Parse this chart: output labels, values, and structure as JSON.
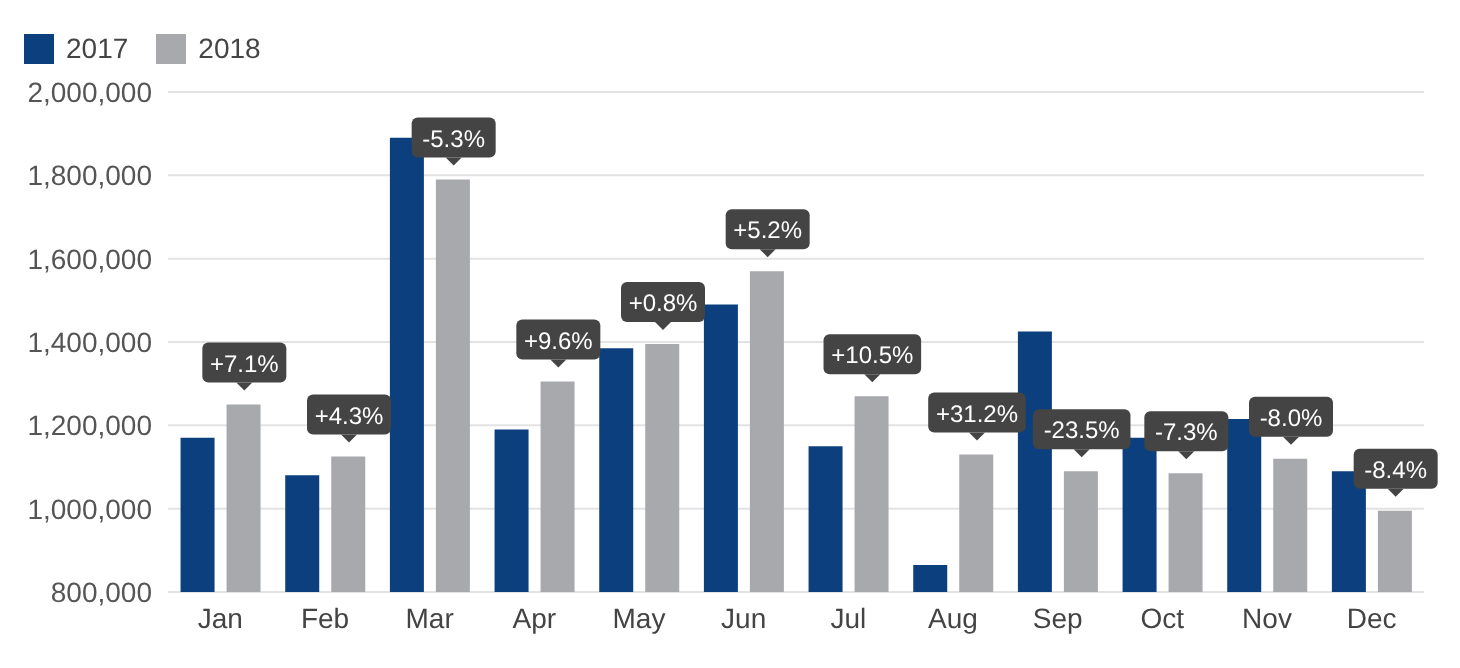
{
  "chart_data": {
    "type": "bar",
    "categories": [
      "Jan",
      "Feb",
      "Mar",
      "Apr",
      "May",
      "Jun",
      "Jul",
      "Aug",
      "Sep",
      "Oct",
      "Nov",
      "Dec"
    ],
    "series": [
      {
        "name": "2017",
        "color": "#0b3f7d",
        "values": [
          1170000,
          1080000,
          1890000,
          1190000,
          1385000,
          1490000,
          1150000,
          865000,
          1425000,
          1170000,
          1215000,
          1090000
        ]
      },
      {
        "name": "2018",
        "color": "#a7a9ac",
        "values": [
          1250000,
          1125000,
          1790000,
          1305000,
          1395000,
          1570000,
          1270000,
          1130000,
          1090000,
          1085000,
          1120000,
          995000
        ]
      }
    ],
    "ylim": [
      800000,
      2000000
    ],
    "yticks": [
      {
        "value": 800000,
        "label": "800,000"
      },
      {
        "value": 1000000,
        "label": "1,000,000"
      },
      {
        "value": 1200000,
        "label": "1,200,000"
      },
      {
        "value": 1400000,
        "label": "1,400,000"
      },
      {
        "value": 1600000,
        "label": "1,600,000"
      },
      {
        "value": 1800000,
        "label": "1,800,000"
      },
      {
        "value": 2000000,
        "label": "2,000,000"
      }
    ],
    "grid": "y",
    "legend": "top left",
    "annotations": [
      {
        "text": "+7.1%",
        "x": "Jan",
        "y": 1250000
      },
      {
        "text": "+4.3%",
        "x": "Feb",
        "y": 1125000
      },
      {
        "text": "-5.3%",
        "x": "Mar",
        "y": 1790000
      },
      {
        "text": "+9.6%",
        "x": "Apr",
        "y": 1305000
      },
      {
        "text": "+0.8%",
        "x": "May",
        "y": 1395000
      },
      {
        "text": "+5.2%",
        "x": "Jun",
        "y": 1570000
      },
      {
        "text": "+10.5%",
        "x": "Jul",
        "y": 1270000
      },
      {
        "text": "+31.2%",
        "x": "Aug",
        "y": 1130000
      },
      {
        "text": "-23.5%",
        "x": "Sep",
        "y": 1090000
      },
      {
        "text": "-7.3%",
        "x": "Oct",
        "y": 1085000
      },
      {
        "text": "-8.0%",
        "x": "Nov",
        "y": 1120000
      },
      {
        "text": "-8.4%",
        "x": "Dec",
        "y": 995000
      }
    ]
  }
}
